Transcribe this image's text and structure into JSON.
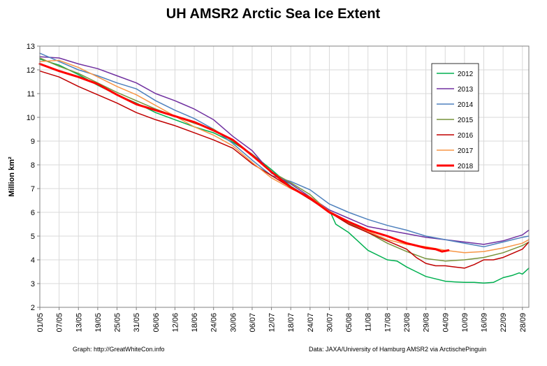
{
  "chart_data": {
    "type": "line",
    "title": "UH AMSR2 Arctic Sea Ice Extent",
    "ylabel": "Million km²",
    "xlabel": "",
    "ylim": [
      2,
      13
    ],
    "yticks": [
      2,
      3,
      4,
      5,
      6,
      7,
      8,
      9,
      10,
      11,
      12,
      13
    ],
    "xlim_day": [
      1,
      153
    ],
    "x_ticks": [
      {
        "label": "01/05",
        "day": 1
      },
      {
        "label": "07/05",
        "day": 7
      },
      {
        "label": "13/05",
        "day": 13
      },
      {
        "label": "19/05",
        "day": 19
      },
      {
        "label": "25/05",
        "day": 25
      },
      {
        "label": "31/05",
        "day": 31
      },
      {
        "label": "06/06",
        "day": 37
      },
      {
        "label": "12/06",
        "day": 43
      },
      {
        "label": "18/06",
        "day": 49
      },
      {
        "label": "24/06",
        "day": 55
      },
      {
        "label": "30/06",
        "day": 61
      },
      {
        "label": "06/07",
        "day": 67
      },
      {
        "label": "12/07",
        "day": 73
      },
      {
        "label": "18/07",
        "day": 79
      },
      {
        "label": "24/07",
        "day": 85
      },
      {
        "label": "30/07",
        "day": 91
      },
      {
        "label": "05/08",
        "day": 97
      },
      {
        "label": "11/08",
        "day": 103
      },
      {
        "label": "17/08",
        "day": 109
      },
      {
        "label": "23/08",
        "day": 115
      },
      {
        "label": "29/08",
        "day": 121
      },
      {
        "label": "04/09",
        "day": 127
      },
      {
        "label": "10/09",
        "day": 133
      },
      {
        "label": "16/09",
        "day": 139
      },
      {
        "label": "22/09",
        "day": 145
      },
      {
        "label": "28/09",
        "day": 151
      }
    ],
    "grid": true,
    "legend_position": "top-right",
    "series": [
      {
        "name": "2012",
        "color": "#00b050",
        "width": 1.5,
        "points": [
          [
            1,
            12.45
          ],
          [
            7,
            12.2
          ],
          [
            13,
            11.8
          ],
          [
            19,
            11.35
          ],
          [
            25,
            10.95
          ],
          [
            31,
            10.6
          ],
          [
            37,
            10.2
          ],
          [
            43,
            9.9
          ],
          [
            49,
            9.6
          ],
          [
            55,
            9.35
          ],
          [
            61,
            8.95
          ],
          [
            67,
            8.45
          ],
          [
            73,
            7.8
          ],
          [
            79,
            7.1
          ],
          [
            85,
            6.6
          ],
          [
            91,
            6.1
          ],
          [
            92,
            5.8
          ],
          [
            93,
            5.5
          ],
          [
            97,
            5.15
          ],
          [
            103,
            4.4
          ],
          [
            109,
            4.0
          ],
          [
            112,
            3.95
          ],
          [
            115,
            3.7
          ],
          [
            118,
            3.5
          ],
          [
            121,
            3.3
          ],
          [
            124,
            3.2
          ],
          [
            127,
            3.1
          ],
          [
            130,
            3.07
          ],
          [
            133,
            3.05
          ],
          [
            136,
            3.05
          ],
          [
            139,
            3.02
          ],
          [
            142,
            3.05
          ],
          [
            145,
            3.25
          ],
          [
            148,
            3.35
          ],
          [
            150,
            3.45
          ],
          [
            151,
            3.4
          ],
          [
            153,
            3.65
          ]
        ]
      },
      {
        "name": "2013",
        "color": "#7030a0",
        "width": 1.5,
        "points": [
          [
            1,
            12.55
          ],
          [
            7,
            12.5
          ],
          [
            13,
            12.25
          ],
          [
            19,
            12.05
          ],
          [
            25,
            11.75
          ],
          [
            31,
            11.45
          ],
          [
            37,
            11.0
          ],
          [
            43,
            10.7
          ],
          [
            49,
            10.35
          ],
          [
            55,
            9.9
          ],
          [
            61,
            9.2
          ],
          [
            67,
            8.6
          ],
          [
            73,
            7.65
          ],
          [
            79,
            7.2
          ],
          [
            85,
            6.65
          ],
          [
            91,
            6.1
          ],
          [
            97,
            5.75
          ],
          [
            103,
            5.4
          ],
          [
            109,
            5.25
          ],
          [
            115,
            5.1
          ],
          [
            121,
            4.95
          ],
          [
            127,
            4.85
          ],
          [
            133,
            4.75
          ],
          [
            139,
            4.65
          ],
          [
            145,
            4.8
          ],
          [
            151,
            5.05
          ],
          [
            153,
            5.25
          ]
        ]
      },
      {
        "name": "2014",
        "color": "#4f81bd",
        "width": 1.5,
        "points": [
          [
            1,
            12.7
          ],
          [
            7,
            12.35
          ],
          [
            13,
            12.0
          ],
          [
            19,
            11.75
          ],
          [
            25,
            11.45
          ],
          [
            31,
            11.2
          ],
          [
            37,
            10.7
          ],
          [
            43,
            10.3
          ],
          [
            49,
            9.95
          ],
          [
            55,
            9.5
          ],
          [
            61,
            8.9
          ],
          [
            67,
            8.2
          ],
          [
            73,
            7.55
          ],
          [
            79,
            7.3
          ],
          [
            85,
            6.95
          ],
          [
            91,
            6.35
          ],
          [
            97,
            6.0
          ],
          [
            103,
            5.7
          ],
          [
            109,
            5.45
          ],
          [
            115,
            5.25
          ],
          [
            121,
            5.0
          ],
          [
            127,
            4.85
          ],
          [
            133,
            4.7
          ],
          [
            139,
            4.55
          ],
          [
            142,
            4.65
          ],
          [
            145,
            4.75
          ],
          [
            151,
            4.95
          ],
          [
            153,
            5.0
          ]
        ]
      },
      {
        "name": "2015",
        "color": "#77933c",
        "width": 1.5,
        "points": [
          [
            1,
            12.5
          ],
          [
            7,
            12.15
          ],
          [
            13,
            11.85
          ],
          [
            19,
            11.45
          ],
          [
            25,
            11.05
          ],
          [
            31,
            10.7
          ],
          [
            37,
            10.35
          ],
          [
            43,
            10.05
          ],
          [
            49,
            9.75
          ],
          [
            55,
            9.5
          ],
          [
            61,
            9.0
          ],
          [
            67,
            8.45
          ],
          [
            73,
            7.7
          ],
          [
            79,
            7.25
          ],
          [
            85,
            6.75
          ],
          [
            91,
            6.0
          ],
          [
            97,
            5.55
          ],
          [
            103,
            5.15
          ],
          [
            109,
            4.7
          ],
          [
            115,
            4.35
          ],
          [
            121,
            4.05
          ],
          [
            127,
            3.95
          ],
          [
            133,
            4.0
          ],
          [
            139,
            4.1
          ],
          [
            145,
            4.3
          ],
          [
            151,
            4.6
          ],
          [
            153,
            4.75
          ]
        ]
      },
      {
        "name": "2016",
        "color": "#c00000",
        "width": 1.5,
        "points": [
          [
            1,
            11.95
          ],
          [
            7,
            11.7
          ],
          [
            13,
            11.3
          ],
          [
            19,
            10.95
          ],
          [
            25,
            10.6
          ],
          [
            31,
            10.2
          ],
          [
            37,
            9.9
          ],
          [
            43,
            9.65
          ],
          [
            49,
            9.35
          ],
          [
            55,
            9.05
          ],
          [
            61,
            8.7
          ],
          [
            67,
            8.05
          ],
          [
            73,
            7.55
          ],
          [
            79,
            7.05
          ],
          [
            85,
            6.55
          ],
          [
            91,
            6.0
          ],
          [
            97,
            5.5
          ],
          [
            103,
            5.15
          ],
          [
            109,
            4.8
          ],
          [
            115,
            4.45
          ],
          [
            118,
            4.1
          ],
          [
            121,
            3.85
          ],
          [
            124,
            3.75
          ],
          [
            127,
            3.75
          ],
          [
            130,
            3.7
          ],
          [
            133,
            3.65
          ],
          [
            136,
            3.8
          ],
          [
            139,
            4.0
          ],
          [
            142,
            4.0
          ],
          [
            145,
            4.1
          ],
          [
            151,
            4.45
          ],
          [
            153,
            4.75
          ]
        ]
      },
      {
        "name": "2017",
        "color": "#f79646",
        "width": 1.5,
        "points": [
          [
            1,
            12.35
          ],
          [
            7,
            12.4
          ],
          [
            13,
            12.1
          ],
          [
            19,
            11.7
          ],
          [
            25,
            11.3
          ],
          [
            31,
            10.95
          ],
          [
            37,
            10.5
          ],
          [
            43,
            10.05
          ],
          [
            49,
            9.6
          ],
          [
            55,
            9.25
          ],
          [
            61,
            8.8
          ],
          [
            67,
            8.1
          ],
          [
            73,
            7.45
          ],
          [
            79,
            7.0
          ],
          [
            85,
            6.65
          ],
          [
            91,
            6.05
          ],
          [
            97,
            5.6
          ],
          [
            103,
            5.2
          ],
          [
            109,
            4.85
          ],
          [
            115,
            4.65
          ],
          [
            121,
            4.55
          ],
          [
            127,
            4.4
          ],
          [
            133,
            4.3
          ],
          [
            139,
            4.35
          ],
          [
            145,
            4.5
          ],
          [
            151,
            4.7
          ],
          [
            153,
            4.85
          ]
        ]
      },
      {
        "name": "2018",
        "color": "#ff0000",
        "width": 3,
        "points": [
          [
            1,
            12.25
          ],
          [
            7,
            11.95
          ],
          [
            13,
            11.7
          ],
          [
            19,
            11.4
          ],
          [
            25,
            10.95
          ],
          [
            31,
            10.55
          ],
          [
            37,
            10.3
          ],
          [
            43,
            10.05
          ],
          [
            49,
            9.8
          ],
          [
            55,
            9.45
          ],
          [
            61,
            9.05
          ],
          [
            67,
            8.4
          ],
          [
            73,
            7.7
          ],
          [
            79,
            7.05
          ],
          [
            85,
            6.6
          ],
          [
            91,
            6.0
          ],
          [
            97,
            5.6
          ],
          [
            103,
            5.25
          ],
          [
            109,
            5.0
          ],
          [
            115,
            4.7
          ],
          [
            121,
            4.5
          ],
          [
            124,
            4.45
          ],
          [
            126,
            4.35
          ],
          [
            128,
            4.4
          ]
        ]
      }
    ]
  },
  "footer": {
    "left": "Graph: http://GreatWhiteCon.info",
    "right": "Data: JAXA/University of Hamburg AMSR2 via ArctischePinguin"
  }
}
